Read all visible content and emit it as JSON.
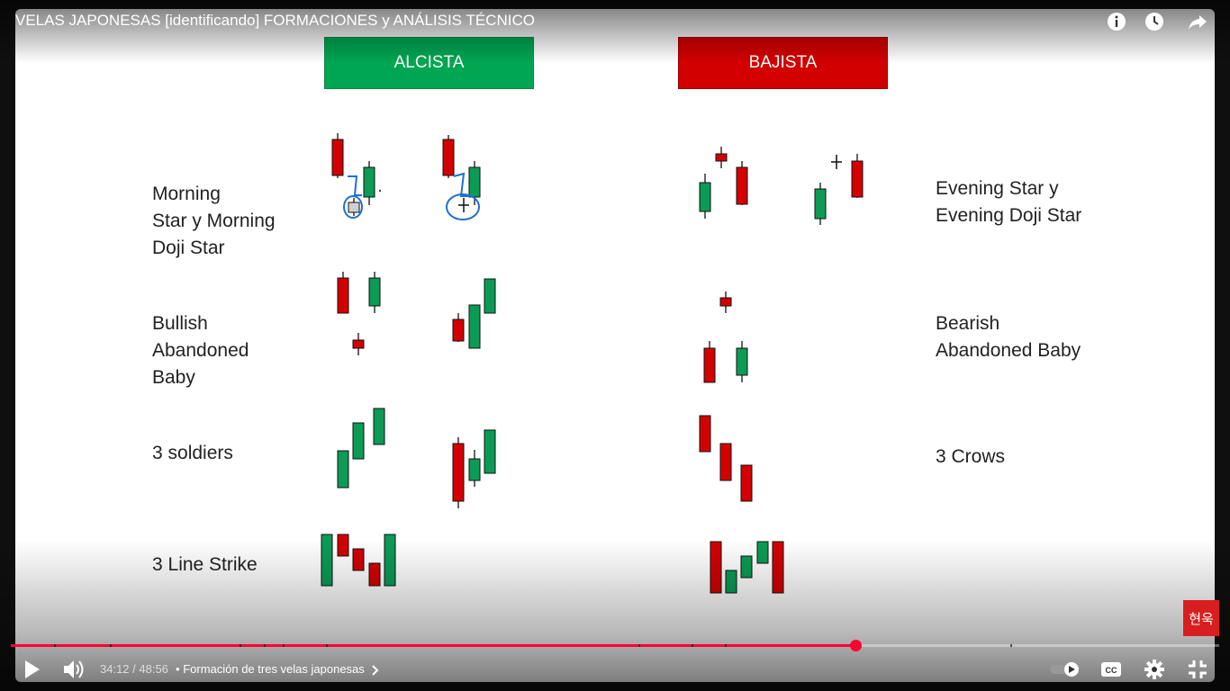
{
  "video": {
    "title": "VELAS JAPONESAS [identificando] FORMACIONES y ANÁLISIS TÉCNICO"
  },
  "slide": {
    "headers": {
      "bullish": "ALCISTA",
      "bearish": "BAJISTA"
    },
    "patterns": [
      {
        "id": "morning-evening-star",
        "bullish_label": "Morning\nStar y Morning\nDoji Star",
        "bearish_label": "Evening Star y\nEvening Doji Star"
      },
      {
        "id": "abandoned-baby",
        "bullish_label": "Bullish\nAbandoned\nBaby",
        "bearish_label": "Bearish\nAbandoned Baby"
      },
      {
        "id": "three-soldiers-crows",
        "bullish_label": "3 soldiers",
        "bearish_label": "3 Crows"
      },
      {
        "id": "three-line-strike",
        "bullish_label": "3 Line Strike",
        "bearish_label": ""
      }
    ],
    "watermark_badge": "현욱",
    "candle_colors": {
      "bullish": "#0b9b55",
      "bearish": "#d40000",
      "doji": "#d0d0d0",
      "annotation": "#1f6fd1"
    }
  },
  "player": {
    "current_time": "34:12",
    "duration": "48:56",
    "time_display": "34:12 / 48:56",
    "chapter_prefix": "•",
    "chapter": "Formación de tres velas japonesas",
    "progress_fraction": 0.699,
    "icons": {
      "play": "play-icon",
      "volume": "volume-icon",
      "autoplay": "autoplay-toggle-icon",
      "captions": "captions-icon",
      "settings": "gear-icon",
      "fullscreen_exit": "exit-fullscreen-icon",
      "info": "info-icon",
      "watch_later": "clock-icon",
      "share": "share-icon"
    },
    "accent_color": "#ff0033"
  }
}
